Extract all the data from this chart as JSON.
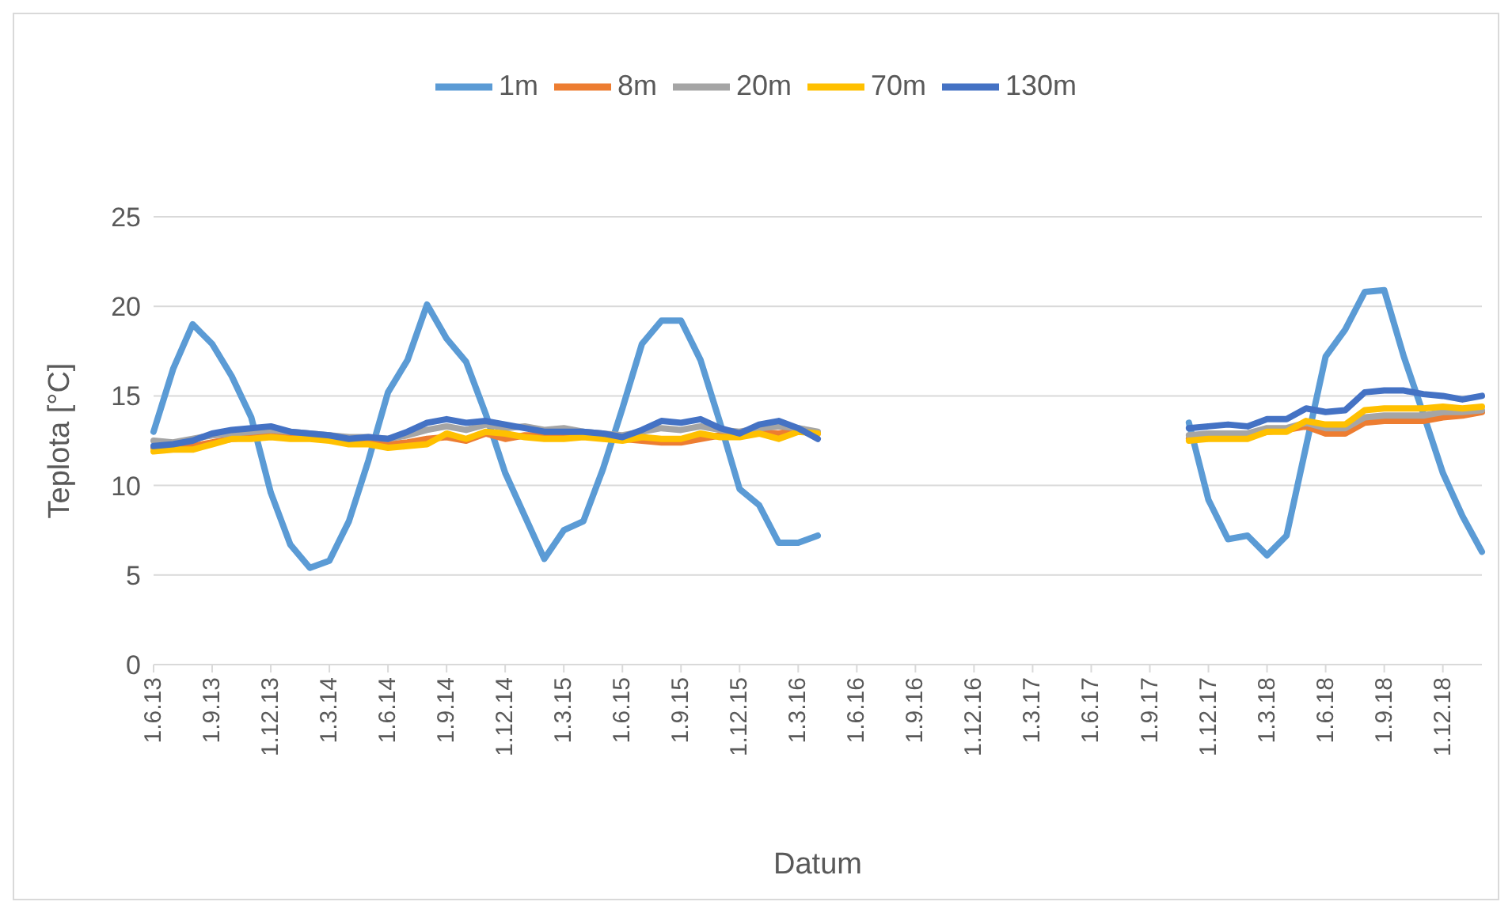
{
  "chart_data": {
    "type": "line",
    "xlabel": "Datum",
    "ylabel": "Teplota [°C]",
    "categories": [
      "1.6.13",
      null,
      null,
      "1.9.13",
      null,
      null,
      "1.12.13",
      null,
      null,
      "1.3.14",
      null,
      null,
      "1.6.14",
      null,
      null,
      "1.9.14",
      null,
      null,
      "1.12.14",
      null,
      null,
      "1.3.15",
      null,
      null,
      "1.6.15",
      null,
      null,
      "1.9.15",
      null,
      null,
      "1.12.15",
      null,
      null,
      "1.3.16",
      null,
      null,
      "1.6.16",
      null,
      null,
      "1.9.16",
      null,
      null,
      "1.12.16",
      null,
      null,
      "1.3.17",
      null,
      null,
      "1.6.17",
      null,
      null,
      "1.9.17",
      null,
      null,
      "1.12.17",
      null,
      null,
      "1.3.18",
      null,
      null,
      "1.6.18",
      null,
      null,
      "1.9.18",
      null,
      null,
      "1.12.18",
      null,
      null
    ],
    "series": [
      {
        "name": "1m",
        "color": "#5b9bd5",
        "values": [
          13.0,
          16.5,
          19.0,
          17.9,
          16.1,
          13.8,
          9.6,
          6.7,
          5.4,
          5.8,
          8.0,
          11.4,
          15.2,
          17.0,
          20.1,
          18.2,
          16.9,
          14.0,
          10.7,
          8.3,
          5.9,
          7.5,
          8.0,
          10.9,
          14.3,
          17.9,
          19.2,
          19.2,
          17.0,
          13.5,
          9.8,
          8.9,
          6.8,
          6.8,
          7.2,
          null,
          null,
          null,
          null,
          null,
          null,
          null,
          null,
          null,
          null,
          null,
          null,
          null,
          null,
          null,
          null,
          null,
          null,
          13.5,
          9.2,
          7.0,
          7.2,
          6.1,
          7.2,
          12.2,
          17.2,
          18.7,
          20.8,
          20.9,
          17.2,
          14.0,
          10.7,
          8.3,
          6.3
        ]
      },
      {
        "name": "8m",
        "color": "#ed7d31",
        "values": [
          12.1,
          12.1,
          12.2,
          12.4,
          12.6,
          12.7,
          12.8,
          12.7,
          12.7,
          12.6,
          12.4,
          12.4,
          12.3,
          12.4,
          12.6,
          12.7,
          12.5,
          12.9,
          12.6,
          12.8,
          12.8,
          12.9,
          12.8,
          12.7,
          12.6,
          12.5,
          12.4,
          12.4,
          12.6,
          12.8,
          12.9,
          13.0,
          12.9,
          13.1,
          12.9,
          null,
          null,
          null,
          null,
          null,
          null,
          null,
          null,
          null,
          null,
          null,
          null,
          null,
          null,
          null,
          null,
          null,
          null,
          12.6,
          12.7,
          12.7,
          12.7,
          13.0,
          13.1,
          13.3,
          12.9,
          12.9,
          13.5,
          13.6,
          13.6,
          13.6,
          13.8,
          13.9,
          14.1
        ]
      },
      {
        "name": "20m",
        "color": "#a5a5a5",
        "values": [
          12.5,
          12.4,
          12.6,
          12.8,
          12.9,
          13.0,
          13.1,
          13.0,
          12.9,
          12.8,
          12.7,
          12.7,
          12.6,
          12.8,
          13.1,
          13.3,
          13.1,
          13.4,
          13.2,
          13.3,
          13.1,
          13.2,
          13.0,
          12.9,
          12.8,
          13.0,
          13.2,
          13.1,
          13.3,
          13.1,
          13.0,
          13.2,
          13.3,
          13.2,
          13.0,
          null,
          null,
          null,
          null,
          null,
          null,
          null,
          null,
          null,
          null,
          null,
          null,
          null,
          null,
          null,
          null,
          null,
          null,
          12.8,
          12.9,
          12.9,
          12.9,
          13.2,
          13.2,
          13.5,
          13.2,
          13.2,
          13.8,
          13.9,
          13.9,
          13.9,
          14.1,
          14.1,
          14.2
        ]
      },
      {
        "name": "70m",
        "color": "#ffc000",
        "values": [
          11.9,
          12.0,
          12.0,
          12.3,
          12.6,
          12.6,
          12.7,
          12.6,
          12.6,
          12.5,
          12.3,
          12.3,
          12.1,
          12.2,
          12.3,
          12.9,
          12.6,
          13.0,
          12.9,
          12.7,
          12.6,
          12.6,
          12.7,
          12.6,
          12.5,
          12.7,
          12.6,
          12.6,
          12.9,
          12.7,
          12.7,
          12.9,
          12.6,
          13.0,
          12.9,
          null,
          null,
          null,
          null,
          null,
          null,
          null,
          null,
          null,
          null,
          null,
          null,
          null,
          null,
          null,
          null,
          null,
          null,
          12.5,
          12.6,
          12.6,
          12.6,
          13.0,
          13.0,
          13.6,
          13.4,
          13.4,
          14.2,
          14.3,
          14.3,
          14.3,
          14.4,
          14.3,
          14.4
        ]
      },
      {
        "name": "130m",
        "color": "#4472c4",
        "values": [
          12.2,
          12.3,
          12.5,
          12.9,
          13.1,
          13.2,
          13.3,
          13.0,
          12.9,
          12.8,
          12.6,
          12.7,
          12.6,
          13.0,
          13.5,
          13.7,
          13.5,
          13.6,
          13.4,
          13.2,
          13.0,
          13.0,
          13.0,
          12.9,
          12.7,
          13.1,
          13.6,
          13.5,
          13.7,
          13.2,
          12.9,
          13.4,
          13.6,
          13.2,
          12.6,
          null,
          null,
          null,
          null,
          null,
          null,
          null,
          null,
          null,
          null,
          null,
          null,
          null,
          null,
          null,
          null,
          null,
          null,
          13.2,
          13.3,
          13.4,
          13.3,
          13.7,
          13.7,
          14.3,
          14.1,
          14.2,
          15.2,
          15.3,
          15.3,
          15.1,
          15.0,
          14.8,
          15.0
        ]
      }
    ],
    "ylim": [
      0,
      25
    ],
    "yticks": [
      0,
      5,
      10,
      15,
      20,
      25
    ],
    "grid": "y",
    "legend": "top"
  }
}
